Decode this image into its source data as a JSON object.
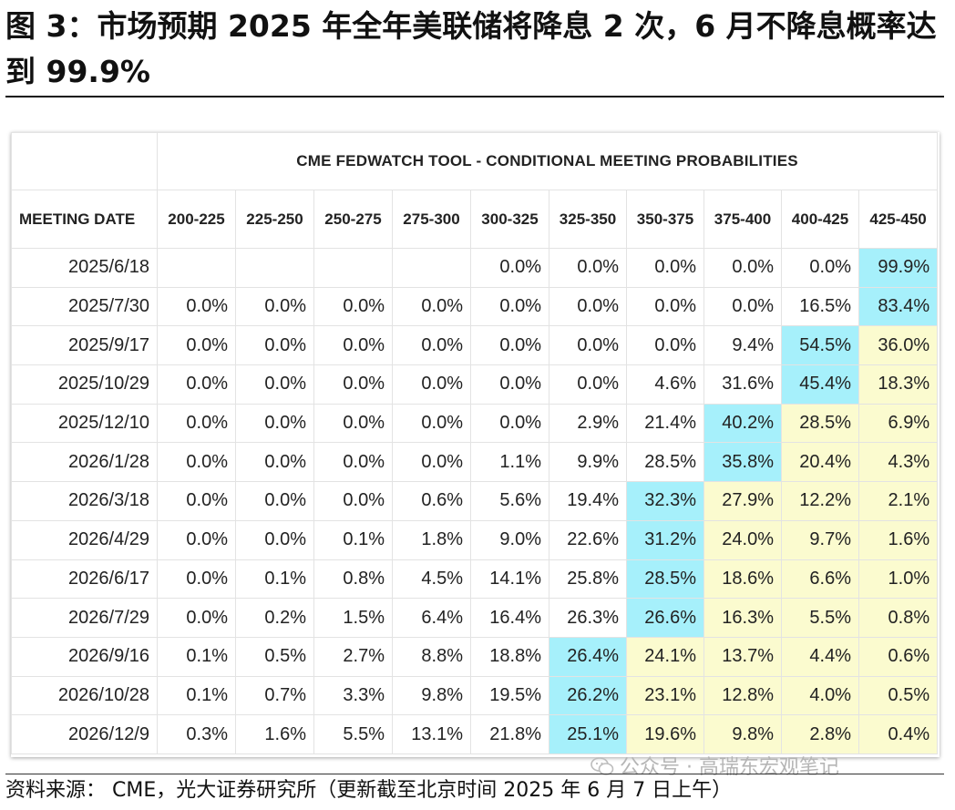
{
  "title": "图 3：市场预期 2025 年全年美联储将降息 2 次，6 月不降息概率达到 99.9%",
  "table": {
    "super_header": "CME FEDWATCH TOOL - CONDITIONAL MEETING PROBABILITIES",
    "date_header": "MEETING DATE",
    "columns": [
      "200-225",
      "225-250",
      "250-275",
      "275-300",
      "300-325",
      "325-350",
      "350-375",
      "375-400",
      "400-425",
      "425-450"
    ],
    "rows": [
      {
        "date": "2025/6/18",
        "cells": [
          {
            "v": "",
            "h": ""
          },
          {
            "v": "",
            "h": ""
          },
          {
            "v": "",
            "h": ""
          },
          {
            "v": "",
            "h": ""
          },
          {
            "v": "0.0%",
            "h": ""
          },
          {
            "v": "0.0%",
            "h": ""
          },
          {
            "v": "0.0%",
            "h": ""
          },
          {
            "v": "0.0%",
            "h": ""
          },
          {
            "v": "0.0%",
            "h": ""
          },
          {
            "v": "99.9%",
            "h": "blue"
          }
        ]
      },
      {
        "date": "2025/7/30",
        "cells": [
          {
            "v": "0.0%",
            "h": ""
          },
          {
            "v": "0.0%",
            "h": ""
          },
          {
            "v": "0.0%",
            "h": ""
          },
          {
            "v": "0.0%",
            "h": ""
          },
          {
            "v": "0.0%",
            "h": ""
          },
          {
            "v": "0.0%",
            "h": ""
          },
          {
            "v": "0.0%",
            "h": ""
          },
          {
            "v": "0.0%",
            "h": ""
          },
          {
            "v": "16.5%",
            "h": ""
          },
          {
            "v": "83.4%",
            "h": "blue"
          }
        ]
      },
      {
        "date": "2025/9/17",
        "cells": [
          {
            "v": "0.0%",
            "h": ""
          },
          {
            "v": "0.0%",
            "h": ""
          },
          {
            "v": "0.0%",
            "h": ""
          },
          {
            "v": "0.0%",
            "h": ""
          },
          {
            "v": "0.0%",
            "h": ""
          },
          {
            "v": "0.0%",
            "h": ""
          },
          {
            "v": "0.0%",
            "h": ""
          },
          {
            "v": "9.4%",
            "h": ""
          },
          {
            "v": "54.5%",
            "h": "blue"
          },
          {
            "v": "36.0%",
            "h": "yellow"
          }
        ]
      },
      {
        "date": "2025/10/29",
        "cells": [
          {
            "v": "0.0%",
            "h": ""
          },
          {
            "v": "0.0%",
            "h": ""
          },
          {
            "v": "0.0%",
            "h": ""
          },
          {
            "v": "0.0%",
            "h": ""
          },
          {
            "v": "0.0%",
            "h": ""
          },
          {
            "v": "0.0%",
            "h": ""
          },
          {
            "v": "4.6%",
            "h": ""
          },
          {
            "v": "31.6%",
            "h": ""
          },
          {
            "v": "45.4%",
            "h": "blue"
          },
          {
            "v": "18.3%",
            "h": "yellow"
          }
        ]
      },
      {
        "date": "2025/12/10",
        "cells": [
          {
            "v": "0.0%",
            "h": ""
          },
          {
            "v": "0.0%",
            "h": ""
          },
          {
            "v": "0.0%",
            "h": ""
          },
          {
            "v": "0.0%",
            "h": ""
          },
          {
            "v": "0.0%",
            "h": ""
          },
          {
            "v": "2.9%",
            "h": ""
          },
          {
            "v": "21.4%",
            "h": ""
          },
          {
            "v": "40.2%",
            "h": "blue"
          },
          {
            "v": "28.5%",
            "h": "yellow"
          },
          {
            "v": "6.9%",
            "h": "yellow"
          }
        ]
      },
      {
        "date": "2026/1/28",
        "cells": [
          {
            "v": "0.0%",
            "h": ""
          },
          {
            "v": "0.0%",
            "h": ""
          },
          {
            "v": "0.0%",
            "h": ""
          },
          {
            "v": "0.0%",
            "h": ""
          },
          {
            "v": "1.1%",
            "h": ""
          },
          {
            "v": "9.9%",
            "h": ""
          },
          {
            "v": "28.5%",
            "h": ""
          },
          {
            "v": "35.8%",
            "h": "blue"
          },
          {
            "v": "20.4%",
            "h": "yellow"
          },
          {
            "v": "4.3%",
            "h": "yellow"
          }
        ]
      },
      {
        "date": "2026/3/18",
        "cells": [
          {
            "v": "0.0%",
            "h": ""
          },
          {
            "v": "0.0%",
            "h": ""
          },
          {
            "v": "0.0%",
            "h": ""
          },
          {
            "v": "0.6%",
            "h": ""
          },
          {
            "v": "5.6%",
            "h": ""
          },
          {
            "v": "19.4%",
            "h": ""
          },
          {
            "v": "32.3%",
            "h": "blue"
          },
          {
            "v": "27.9%",
            "h": "yellow"
          },
          {
            "v": "12.2%",
            "h": "yellow"
          },
          {
            "v": "2.1%",
            "h": "yellow"
          }
        ]
      },
      {
        "date": "2026/4/29",
        "cells": [
          {
            "v": "0.0%",
            "h": ""
          },
          {
            "v": "0.0%",
            "h": ""
          },
          {
            "v": "0.1%",
            "h": ""
          },
          {
            "v": "1.8%",
            "h": ""
          },
          {
            "v": "9.0%",
            "h": ""
          },
          {
            "v": "22.6%",
            "h": ""
          },
          {
            "v": "31.2%",
            "h": "blue"
          },
          {
            "v": "24.0%",
            "h": "yellow"
          },
          {
            "v": "9.7%",
            "h": "yellow"
          },
          {
            "v": "1.6%",
            "h": "yellow"
          }
        ]
      },
      {
        "date": "2026/6/17",
        "cells": [
          {
            "v": "0.0%",
            "h": ""
          },
          {
            "v": "0.1%",
            "h": ""
          },
          {
            "v": "0.8%",
            "h": ""
          },
          {
            "v": "4.5%",
            "h": ""
          },
          {
            "v": "14.1%",
            "h": ""
          },
          {
            "v": "25.8%",
            "h": ""
          },
          {
            "v": "28.5%",
            "h": "blue"
          },
          {
            "v": "18.6%",
            "h": "yellow"
          },
          {
            "v": "6.6%",
            "h": "yellow"
          },
          {
            "v": "1.0%",
            "h": "yellow"
          }
        ]
      },
      {
        "date": "2026/7/29",
        "cells": [
          {
            "v": "0.0%",
            "h": ""
          },
          {
            "v": "0.2%",
            "h": ""
          },
          {
            "v": "1.5%",
            "h": ""
          },
          {
            "v": "6.4%",
            "h": ""
          },
          {
            "v": "16.4%",
            "h": ""
          },
          {
            "v": "26.3%",
            "h": ""
          },
          {
            "v": "26.6%",
            "h": "blue"
          },
          {
            "v": "16.3%",
            "h": "yellow"
          },
          {
            "v": "5.5%",
            "h": "yellow"
          },
          {
            "v": "0.8%",
            "h": "yellow"
          }
        ]
      },
      {
        "date": "2026/9/16",
        "cells": [
          {
            "v": "0.1%",
            "h": ""
          },
          {
            "v": "0.5%",
            "h": ""
          },
          {
            "v": "2.7%",
            "h": ""
          },
          {
            "v": "8.8%",
            "h": ""
          },
          {
            "v": "18.8%",
            "h": ""
          },
          {
            "v": "26.4%",
            "h": "blue"
          },
          {
            "v": "24.1%",
            "h": "yellow"
          },
          {
            "v": "13.7%",
            "h": "yellow"
          },
          {
            "v": "4.4%",
            "h": "yellow"
          },
          {
            "v": "0.6%",
            "h": "yellow"
          }
        ]
      },
      {
        "date": "2026/10/28",
        "cells": [
          {
            "v": "0.1%",
            "h": ""
          },
          {
            "v": "0.7%",
            "h": ""
          },
          {
            "v": "3.3%",
            "h": ""
          },
          {
            "v": "9.8%",
            "h": ""
          },
          {
            "v": "19.5%",
            "h": ""
          },
          {
            "v": "26.2%",
            "h": "blue"
          },
          {
            "v": "23.1%",
            "h": "yellow"
          },
          {
            "v": "12.8%",
            "h": "yellow"
          },
          {
            "v": "4.0%",
            "h": "yellow"
          },
          {
            "v": "0.5%",
            "h": "yellow"
          }
        ]
      },
      {
        "date": "2026/12/9",
        "cells": [
          {
            "v": "0.3%",
            "h": ""
          },
          {
            "v": "1.6%",
            "h": ""
          },
          {
            "v": "5.5%",
            "h": ""
          },
          {
            "v": "13.1%",
            "h": ""
          },
          {
            "v": "21.8%",
            "h": ""
          },
          {
            "v": "25.1%",
            "h": "blue"
          },
          {
            "v": "19.6%",
            "h": "yellow"
          },
          {
            "v": "9.8%",
            "h": "yellow"
          },
          {
            "v": "2.8%",
            "h": "yellow"
          },
          {
            "v": "0.4%",
            "h": "yellow"
          }
        ]
      }
    ]
  },
  "colors": {
    "highlight_blue": "#a6f0fb",
    "highlight_yellow": "#fbfbcf"
  },
  "source": "资料来源：  CME，光大证券研究所（更新截至北京时间 2025 年 6 月 7 日上午）",
  "watermark": "公众号 · 高瑞东宏观笔记"
}
